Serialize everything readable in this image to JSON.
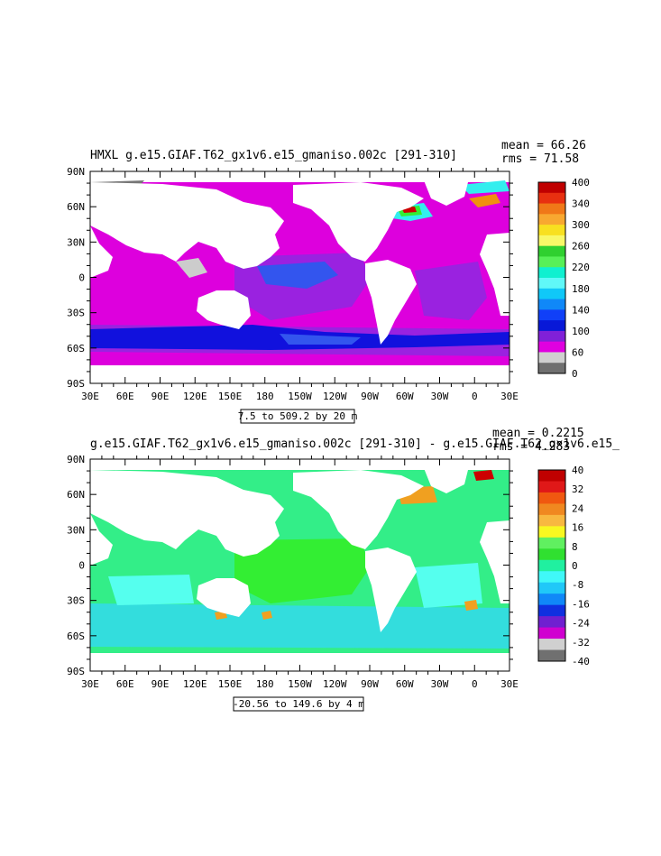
{
  "chart_data": [
    {
      "type": "heatmap",
      "title": "HMXL g.e15.GIAF.T62_gx1v6.e15_gmaniso.002c [291-310]",
      "stats": {
        "mean_label": "mean =",
        "mean": "66.26",
        "rms_label": "rms =",
        "rms": "71.58"
      },
      "x_ticks": [
        "30E",
        "60E",
        "90E",
        "120E",
        "150E",
        "180",
        "150W",
        "120W",
        "90W",
        "60W",
        "30W",
        "0",
        "30E"
      ],
      "y_ticks": [
        "90N",
        "60N",
        "30N",
        "0",
        "30S",
        "60S",
        "90S"
      ],
      "range_label": "7.5 to 509.2 by 20 m",
      "colorbar": {
        "labels": [
          "400",
          "340",
          "300",
          "260",
          "220",
          "180",
          "140",
          "100",
          "60",
          "0"
        ],
        "colors": [
          "#c00000",
          "#e83010",
          "#f07818",
          "#f8a830",
          "#f8e020",
          "#f8f868",
          "#30d030",
          "#58f058",
          "#10f0d0",
          "#60f8f8",
          "#10c8f8",
          "#1088f8",
          "#1040f8",
          "#0818d8",
          "#8020d8",
          "#e000e0",
          "#d0d0d0",
          "#707070"
        ]
      },
      "colors": {
        "ocean": "#dd00dd",
        "mid": "#9a22e0",
        "deep": "#3355ee",
        "deep2": "#1111dd",
        "cyan": "#33eeee",
        "green": "#33ee33",
        "red": "#cc0000",
        "orange": "#f09010",
        "gray": "#cccccc",
        "dark": "#777777"
      }
    },
    {
      "type": "heatmap",
      "title": "g.e15.GIAF.T62_gx1v6.e15_gmaniso.002c [291-310] - g.e15.GIAF.T62_gx1v6.e15_",
      "stats": {
        "mean_label": "mean =",
        "mean": "0.2215",
        "rms_label": "rms =",
        "rms": "4.283"
      },
      "x_ticks": [
        "30E",
        "60E",
        "90E",
        "120E",
        "150E",
        "180",
        "150W",
        "120W",
        "90W",
        "60W",
        "30W",
        "0",
        "30E"
      ],
      "y_ticks": [
        "90N",
        "60N",
        "30N",
        "0",
        "30S",
        "60S",
        "90S"
      ],
      "range_label": "-20.56 to 149.6 by 4 m",
      "colorbar": {
        "labels": [
          "40",
          "32",
          "24",
          "16",
          "8",
          "0",
          "-8",
          "-16",
          "-24",
          "-32",
          "-40"
        ],
        "colors": [
          "#c00000",
          "#e01818",
          "#f05810",
          "#f08820",
          "#f8b840",
          "#f8f820",
          "#60f060",
          "#30e030",
          "#20f0a0",
          "#40f8f8",
          "#20c8f8",
          "#1088f8",
          "#1030e0",
          "#7020d0",
          "#d000d0",
          "#d0d0d0",
          "#707070"
        ]
      },
      "colors": {
        "ocean": "#33ee88",
        "mid": "#33ee33",
        "deep": "#33eecc",
        "deep2": "#33dddd",
        "cyan": "#55ffee",
        "green": "#33ee33",
        "red": "#cc0000",
        "orange": "#f0a020",
        "gray": "#cccccc",
        "dark": "#777777"
      }
    }
  ]
}
